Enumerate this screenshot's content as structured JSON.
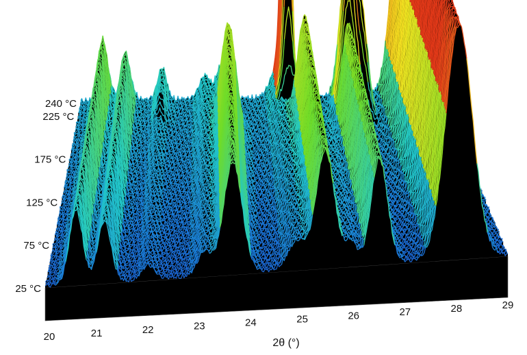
{
  "chart_data": {
    "type": "waterfall-3d",
    "title": "",
    "xlabel": "2θ (°)",
    "ylabel": "",
    "x_ticks": [
      "20",
      "21",
      "22",
      "23",
      "24",
      "25",
      "26",
      "27",
      "28",
      "29"
    ],
    "xlim": [
      20,
      29
    ],
    "temperature_ticks": [
      "25 °C",
      "75 °C",
      "125 °C",
      "175 °C",
      "225 °C",
      "240 °C"
    ],
    "temperature_range": [
      25,
      240
    ],
    "colormap": [
      "#1a2fb0",
      "#1a7ad8",
      "#22c8c8",
      "#6fdc28",
      "#f0e020",
      "#e03818"
    ],
    "background": "#000000",
    "peaks": [
      {
        "center": 20.6,
        "width": 0.13,
        "amp": 0.32,
        "t_start": 25,
        "t_end": 225,
        "ramp": 30
      },
      {
        "center": 21.15,
        "width": 0.13,
        "amp": 0.26,
        "t_start": 25,
        "t_end": 225,
        "ramp": 30
      },
      {
        "center": 22.0,
        "width": 0.12,
        "amp": 0.06,
        "t_start": 25,
        "t_end": 240,
        "ramp": 10
      },
      {
        "center": 23.1,
        "width": 0.14,
        "amp": 0.1,
        "t_start": 25,
        "t_end": 240,
        "ramp": 10
      },
      {
        "center": 23.65,
        "width": 0.18,
        "amp": 0.48,
        "t_start": 25,
        "t_end": 195,
        "ramp": 25
      },
      {
        "center": 24.9,
        "width": 0.18,
        "amp": 0.12,
        "t_start": 25,
        "t_end": 240,
        "ramp": 10
      },
      {
        "center": 25.45,
        "width": 0.18,
        "amp": 0.5,
        "t_start": 25,
        "t_end": 195,
        "ramp": 20
      },
      {
        "center": 25.95,
        "width": 0.12,
        "amp": 0.1,
        "t_start": 25,
        "t_end": 175,
        "ramp": 20
      },
      {
        "center": 26.5,
        "width": 0.16,
        "amp": 0.45,
        "t_start": 25,
        "t_end": 210,
        "ramp": 25
      },
      {
        "center": 28.05,
        "width": 0.26,
        "amp": 1.0,
        "t_start": 25,
        "t_end": 240,
        "ramp": 5
      },
      {
        "center": 25.1,
        "width": 0.1,
        "amp": 1.15,
        "t_start": 215,
        "t_end": 240,
        "ramp": 12
      },
      {
        "center": 26.6,
        "width": 0.16,
        "amp": 0.5,
        "t_start": 210,
        "t_end": 240,
        "ramp": 10
      },
      {
        "center": 26.9,
        "width": 0.14,
        "amp": 0.38,
        "t_start": 212,
        "t_end": 240,
        "ramp": 10
      },
      {
        "center": 23.5,
        "width": 0.12,
        "amp": 0.14,
        "t_start": 212,
        "t_end": 240,
        "ramp": 10
      },
      {
        "center": 22.05,
        "width": 0.1,
        "amp": 0.08,
        "t_start": 212,
        "t_end": 240,
        "ramp": 10
      }
    ]
  }
}
